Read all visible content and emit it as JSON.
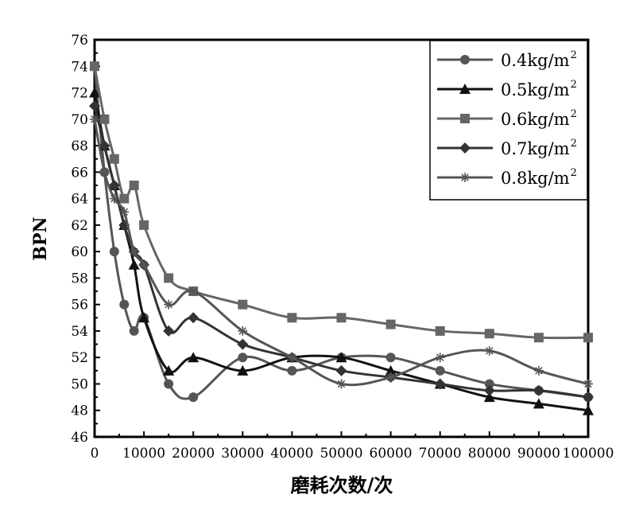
{
  "chart_data": {
    "type": "line",
    "title": "",
    "xlabel": "磨耗次数/次",
    "ylabel": "BPN",
    "xlim": [
      0,
      100000
    ],
    "ylim": [
      46,
      76
    ],
    "xticks": [
      0,
      10000,
      20000,
      30000,
      40000,
      50000,
      60000,
      70000,
      80000,
      90000,
      100000
    ],
    "yticks": [
      46,
      48,
      50,
      52,
      54,
      56,
      58,
      60,
      62,
      64,
      66,
      68,
      70,
      72,
      74,
      76
    ],
    "grid": false,
    "legend_position": "top-right",
    "x": [
      0,
      2000,
      4000,
      6000,
      8000,
      10000,
      15000,
      20000,
      30000,
      40000,
      50000,
      60000,
      70000,
      80000,
      90000,
      100000
    ],
    "series": [
      {
        "name": "0.4kg/m",
        "sup": "2",
        "marker": "circle",
        "color": "#555555",
        "values": [
          74,
          66,
          60,
          56,
          54,
          55,
          50,
          49,
          52,
          51,
          52,
          52,
          51,
          50,
          49.5,
          49
        ]
      },
      {
        "name": "0.5kg/m",
        "sup": "2",
        "marker": "triangle",
        "color": "#111111",
        "values": [
          72,
          68,
          65,
          62,
          59,
          55,
          51,
          52,
          51,
          52,
          52,
          51,
          50,
          49,
          48.5,
          48
        ]
      },
      {
        "name": "0.6kg/m",
        "sup": "2",
        "marker": "square",
        "color": "#666666",
        "values": [
          74,
          70,
          67,
          64,
          65,
          62,
          58,
          57,
          56,
          55,
          55,
          54.5,
          54,
          53.8,
          53.5,
          53.5
        ]
      },
      {
        "name": "0.7kg/m",
        "sup": "2",
        "marker": "diamond",
        "color": "#333333",
        "values": [
          71,
          68,
          65,
          62,
          60,
          59,
          54,
          55,
          53,
          52,
          51,
          50.5,
          50,
          49.5,
          49.5,
          49
        ]
      },
      {
        "name": "0.8kg/m",
        "sup": "2",
        "marker": "star",
        "color": "#555555",
        "values": [
          70,
          66,
          64,
          63,
          60,
          59,
          56,
          57,
          54,
          52,
          50,
          50.5,
          52,
          52.5,
          51,
          50
        ]
      }
    ]
  }
}
